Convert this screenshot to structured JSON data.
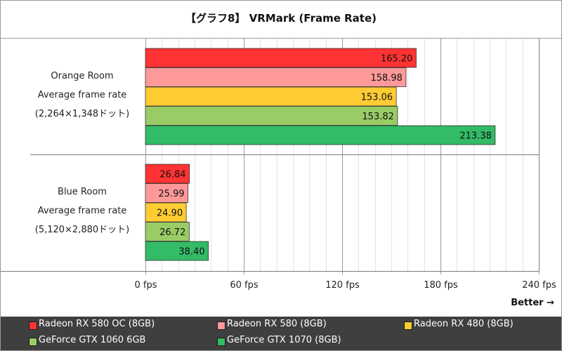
{
  "chart_data": {
    "type": "bar",
    "orientation": "horizontal",
    "title": "【グラフ8】 VRMark (Frame Rate)",
    "groups": [
      {
        "label_lines": [
          "Orange Room",
          "Average frame rate",
          "(2,264×1,348ドット)"
        ]
      },
      {
        "label_lines": [
          "Blue Room",
          "Average frame rate",
          "(5,120×2,880ドット)"
        ]
      }
    ],
    "series": [
      {
        "name": "Radeon RX 580 OC (8GB)",
        "color": "#ff3333",
        "values": [
          165.2,
          26.84
        ],
        "labels": [
          "165.20",
          "26.84"
        ]
      },
      {
        "name": "Radeon RX 580 (8GB)",
        "color": "#ff9999",
        "values": [
          158.98,
          25.99
        ],
        "labels": [
          "158.98",
          "25.99"
        ]
      },
      {
        "name": "Radeon RX 480 (8GB)",
        "color": "#ffcc33",
        "values": [
          153.06,
          24.9
        ],
        "labels": [
          "153.06",
          "24.90"
        ]
      },
      {
        "name": "GeForce GTX 1060 6GB",
        "color": "#99cc66",
        "values": [
          153.82,
          26.72
        ],
        "labels": [
          "153.82",
          "26.72"
        ]
      },
      {
        "name": "GeForce GTX 1070 (8GB)",
        "color": "#33bb66",
        "values": [
          213.38,
          38.4
        ],
        "labels": [
          "213.38",
          "38.40"
        ]
      }
    ],
    "xlim": [
      0,
      240
    ],
    "xticks": [
      0,
      60,
      120,
      180,
      240
    ],
    "xtick_labels": [
      "0 fps",
      "60 fps",
      "120 fps",
      "180 fps",
      "240 fps"
    ],
    "minor_grid_step": 10,
    "grid": true,
    "annotation": "Better →",
    "legend_position": "bottom"
  }
}
